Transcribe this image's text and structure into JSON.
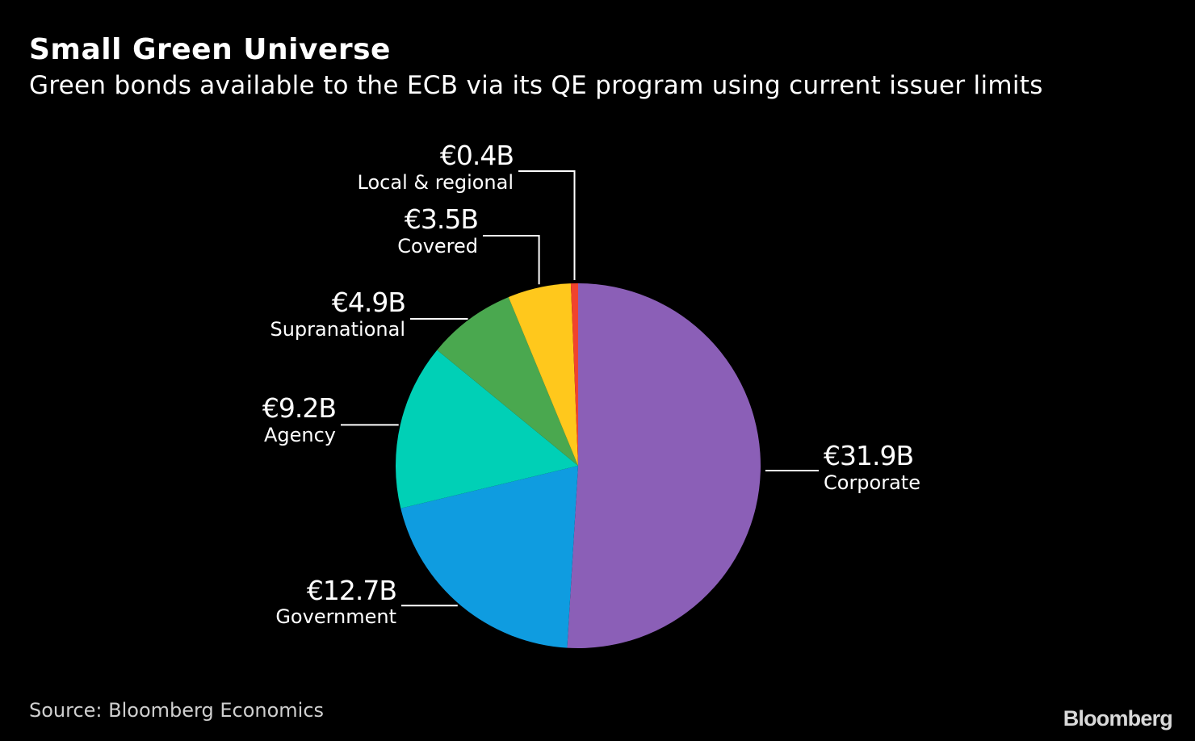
{
  "header": {
    "title": "Small Green Universe",
    "subtitle": "Green bonds available to the ECB via its QE program using current issuer limits"
  },
  "footer": {
    "source": "Source: Bloomberg Economics",
    "brand": "Bloomberg"
  },
  "chart_data": {
    "type": "pie",
    "title": "Small Green Universe",
    "subtitle": "Green bonds available to the ECB via its QE program using current issuer limits",
    "slices": [
      {
        "label": "Corporate",
        "value": 31.9,
        "display": "€31.9B",
        "color": "#8b5fb7"
      },
      {
        "label": "Government",
        "value": 12.7,
        "display": "€12.7B",
        "color": "#0f9ce0"
      },
      {
        "label": "Agency",
        "value": 9.2,
        "display": "€9.2B",
        "color": "#00d0b6"
      },
      {
        "label": "Supranational",
        "value": 4.9,
        "display": "€4.9B",
        "color": "#4aa84f"
      },
      {
        "label": "Covered",
        "value": 3.5,
        "display": "€3.5B",
        "color": "#ffc81c"
      },
      {
        "label": "Local & regional",
        "value": 0.4,
        "display": "€0.4B",
        "color": "#f0432d"
      }
    ],
    "unit": "€ billions",
    "start": "12 o'clock",
    "direction": "clockwise"
  }
}
